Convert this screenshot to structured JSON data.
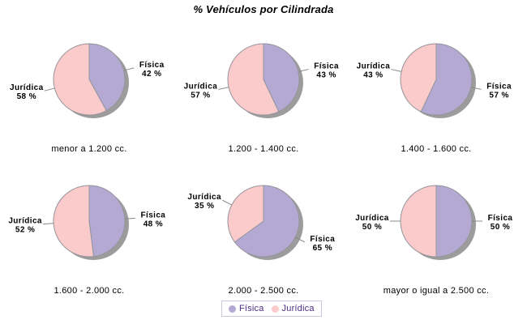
{
  "page": {
    "title": "% Vehículos por Cilindrada",
    "background": "#FFFFFF",
    "legend": {
      "items": [
        {
          "label": "Física",
          "color": "#B3A9D2"
        },
        {
          "label": "Jurídica",
          "color": "#FBCBCB"
        }
      ],
      "text_color": "#4B2D82",
      "border_color": "#C9C9DB"
    },
    "colors": {
      "slice_border": "#94949C",
      "shadow": "#9C9C9C",
      "leader_line": "#888888",
      "label_text": "#000000"
    },
    "value_suffix": " %"
  },
  "chart_data": [
    {
      "type": "pie",
      "title": "menor a 1.200 cc.",
      "labels": [
        "Física",
        "Jurídica"
      ],
      "values": [
        42,
        58
      ],
      "legend_position": "bottom"
    },
    {
      "type": "pie",
      "title": "1.200 - 1.400 cc.",
      "labels": [
        "Física",
        "Jurídica"
      ],
      "values": [
        43,
        57
      ],
      "legend_position": "bottom"
    },
    {
      "type": "pie",
      "title": "1.400 - 1.600 cc.",
      "labels": [
        "Física",
        "Jurídica"
      ],
      "values": [
        57,
        43
      ],
      "legend_position": "bottom"
    },
    {
      "type": "pie",
      "title": "1.600 - 2.000 cc.",
      "labels": [
        "Física",
        "Jurídica"
      ],
      "values": [
        48,
        52
      ],
      "legend_position": "bottom"
    },
    {
      "type": "pie",
      "title": "2.000 - 2.500 cc.",
      "labels": [
        "Física",
        "Jurídica"
      ],
      "values": [
        65,
        35
      ],
      "legend_position": "bottom"
    },
    {
      "type": "pie",
      "title": "mayor o igual a 2.500 cc.",
      "labels": [
        "Física",
        "Jurídica"
      ],
      "values": [
        50,
        50
      ],
      "legend_position": "bottom"
    }
  ]
}
